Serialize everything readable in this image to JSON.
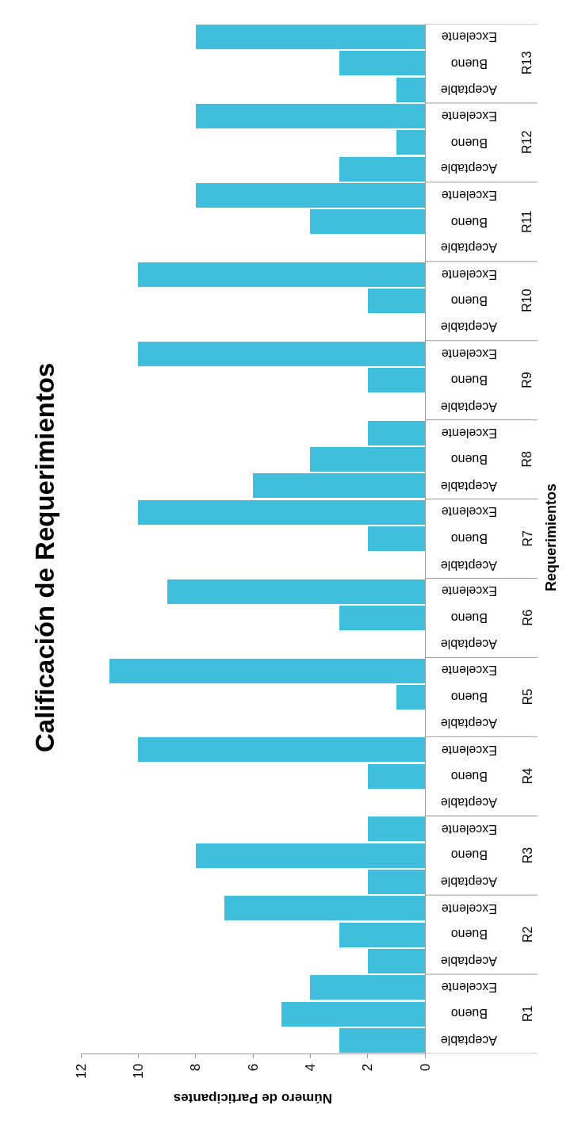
{
  "chart_data": {
    "type": "bar",
    "orientation": "horizontal",
    "title": "Calificación de Requerimientos",
    "xlabel": "Número de Participantes",
    "categories": [
      "Excelente",
      "Bueno",
      "Aceptable",
      "Excelente",
      "Bueno",
      "Aceptable",
      "Excelente",
      "Bueno",
      "Aceptable",
      "Excelente",
      "Bueno",
      "Aceptable",
      "Excelente",
      "Bueno",
      "Aceptable",
      "Excelente",
      "Bueno",
      "Aceptable",
      "Excelente",
      "Bueno",
      "Aceptable",
      "Excelente",
      "Bueno",
      "Aceptable",
      "Excelente",
      "Bueno",
      "Aceptable",
      "Excelente",
      "Bueno",
      "Aceptable",
      "Excelente",
      "Bueno",
      "Aceptable",
      "Excelente",
      "Bueno",
      "Aceptable",
      "Excelente",
      "Bueno",
      "Aceptable"
    ],
    "values": [
      8,
      3,
      1,
      8,
      1,
      3,
      8,
      4,
      0,
      10,
      2,
      0,
      10,
      2,
      0,
      2,
      4,
      6,
      10,
      2,
      0,
      9,
      3,
      0,
      11,
      1,
      0,
      10,
      2,
      0,
      2,
      8,
      2,
      7,
      3,
      2,
      4,
      5,
      3
    ],
    "color": "#40bfdc",
    "annotations": [
      "R13",
      "R12",
      "R11",
      "R10",
      "R9",
      "R8",
      "R7",
      "R6",
      "R5",
      "R4",
      "R3",
      "R2",
      "R1",
      "Requerimientos"
    ],
    "xlim": [
      12,
      0
    ],
    "xticks": [
      0,
      2,
      4,
      6,
      8,
      10,
      12
    ],
    "grid": false
  }
}
